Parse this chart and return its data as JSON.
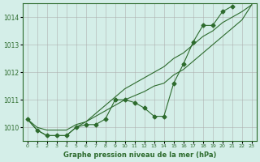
{
  "title": "Graphe pression niveau de la mer (hPa)",
  "background_color": "#d4eee8",
  "grid_color": "#aaaaaa",
  "line_color": "#2d6b2d",
  "x_labels": [
    "0",
    "1",
    "2",
    "3",
    "4",
    "5",
    "6",
    "7",
    "8",
    "9",
    "10",
    "11",
    "12",
    "13",
    "14",
    "15",
    "16",
    "17",
    "18",
    "19",
    "20",
    "21",
    "22",
    "23"
  ],
  "ylim": [
    1009.5,
    1014.5
  ],
  "yticks": [
    1010,
    1011,
    1012,
    1013,
    1014
  ],
  "series1": [
    1010.3,
    1009.9,
    1009.7,
    1009.7,
    1009.7,
    1010.0,
    1010.1,
    1010.1,
    1010.3,
    1011.0,
    1011.0,
    1010.9,
    1010.7,
    1010.4,
    1010.4,
    1011.6,
    1012.3,
    1013.1,
    1013.7,
    1013.7,
    1014.2,
    1014.4
  ],
  "series2": [
    1010.3,
    1009.9,
    1009.7,
    1009.7,
    1009.7,
    1010.0,
    1010.2,
    1010.5,
    1010.8,
    1011.1,
    1011.4,
    1011.6,
    1011.8,
    1012.0,
    1012.2,
    1012.5,
    1012.7,
    1013.0,
    1013.3,
    1013.5,
    1013.8,
    1014.0,
    1014.2,
    1014.45
  ],
  "series3": [
    1010.3,
    1010.0,
    1009.9,
    1009.9,
    1009.9,
    1010.1,
    1010.2,
    1010.4,
    1010.6,
    1010.8,
    1011.0,
    1011.15,
    1011.3,
    1011.5,
    1011.6,
    1011.9,
    1012.1,
    1012.4,
    1012.7,
    1013.0,
    1013.3,
    1013.6,
    1013.9,
    1014.45
  ],
  "n_series1": 22,
  "n_series2": 24,
  "n_series3": 24
}
